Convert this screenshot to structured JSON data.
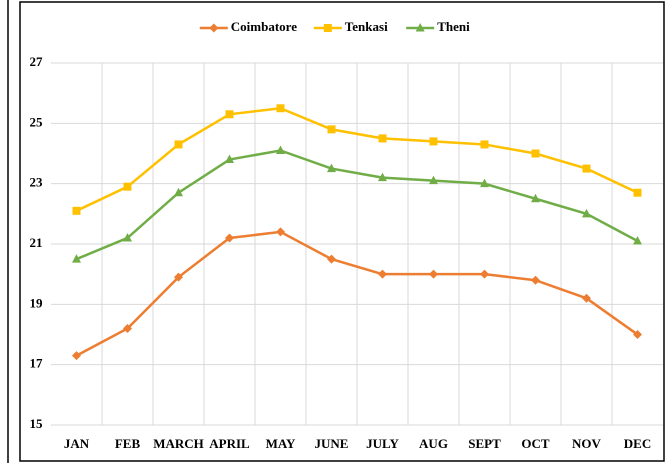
{
  "chart_data": {
    "type": "line",
    "categories": [
      "JAN",
      "FEB",
      "MARCH",
      "APRIL",
      "MAY",
      "JUNE",
      "JULY",
      "AUG",
      "SEPT",
      "OCT",
      "NOV",
      "DEC"
    ],
    "series": [
      {
        "name": "Coimbatore",
        "color": "#ed7d31",
        "marker": "diamond",
        "values": [
          17.3,
          18.2,
          19.9,
          21.2,
          21.4,
          20.5,
          20.0,
          20.0,
          20.0,
          19.8,
          19.2,
          18.0
        ]
      },
      {
        "name": "Tenkasi",
        "color": "#ffc000",
        "marker": "square",
        "values": [
          22.1,
          22.9,
          24.3,
          25.3,
          25.5,
          24.8,
          24.5,
          24.4,
          24.3,
          24.0,
          23.5,
          22.7
        ]
      },
      {
        "name": "Theni",
        "color": "#70ad47",
        "marker": "triangle",
        "values": [
          20.5,
          21.2,
          22.7,
          23.8,
          24.1,
          23.5,
          23.2,
          23.1,
          23.0,
          22.5,
          22.0,
          21.1
        ]
      }
    ],
    "ylim": [
      15,
      27
    ],
    "yticks": [
      15,
      17,
      19,
      21,
      23,
      25,
      27
    ],
    "grid": true,
    "legend": "top"
  }
}
